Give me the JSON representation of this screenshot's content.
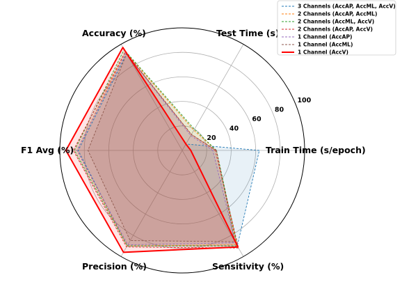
{
  "chart_data": {
    "type": "radar",
    "axes": [
      "Train Time (s/epoch)",
      "Test Time (s)",
      "Accuracy (%)",
      "F1 Avg (%)",
      "Precision (%)",
      "Sensitivity (%)"
    ],
    "rlim": [
      0,
      100
    ],
    "r_ticks": [
      20,
      40,
      60,
      80,
      100
    ],
    "r_tick_labels": [
      "20",
      "40",
      "60",
      "80",
      "100"
    ],
    "grid": true,
    "legend_position": "top-right",
    "series": [
      {
        "name": "3 Channels (AccAP, AccML, AccV)",
        "color": "#1f77b4",
        "style": "dashed",
        "fill": true,
        "values": [
          63,
          6,
          91,
          85,
          90,
          90
        ]
      },
      {
        "name": "2 Channels (AccAP, AccML)",
        "color": "#ff7f0e",
        "style": "dashed",
        "fill": true,
        "values": [
          28,
          19,
          93,
          86,
          90,
          89
        ]
      },
      {
        "name": "2 Channels (AccML, AccV)",
        "color": "#2ca02c",
        "style": "dashed",
        "fill": true,
        "values": [
          28,
          20,
          95,
          88,
          90,
          90
        ]
      },
      {
        "name": "2 Channels (AccAP, AccV)",
        "color": "#d62728",
        "style": "dashed",
        "fill": true,
        "values": [
          27,
          15,
          93,
          89,
          91,
          92
        ]
      },
      {
        "name": "1 Channel (AccAP)",
        "color": "#9467bd",
        "style": "dashed",
        "fill": true,
        "values": [
          25,
          14,
          92,
          86,
          89,
          87
        ]
      },
      {
        "name": "1 Channel (AccML)",
        "color": "#8c564b",
        "style": "dashed",
        "fill": true,
        "values": [
          28,
          15,
          91,
          77,
          85,
          86
        ]
      },
      {
        "name": "1 Channel (AccV)",
        "color": "#ff0000",
        "style": "solid",
        "fill": true,
        "values": [
          7,
          6,
          97,
          95,
          96,
          91
        ]
      }
    ]
  }
}
